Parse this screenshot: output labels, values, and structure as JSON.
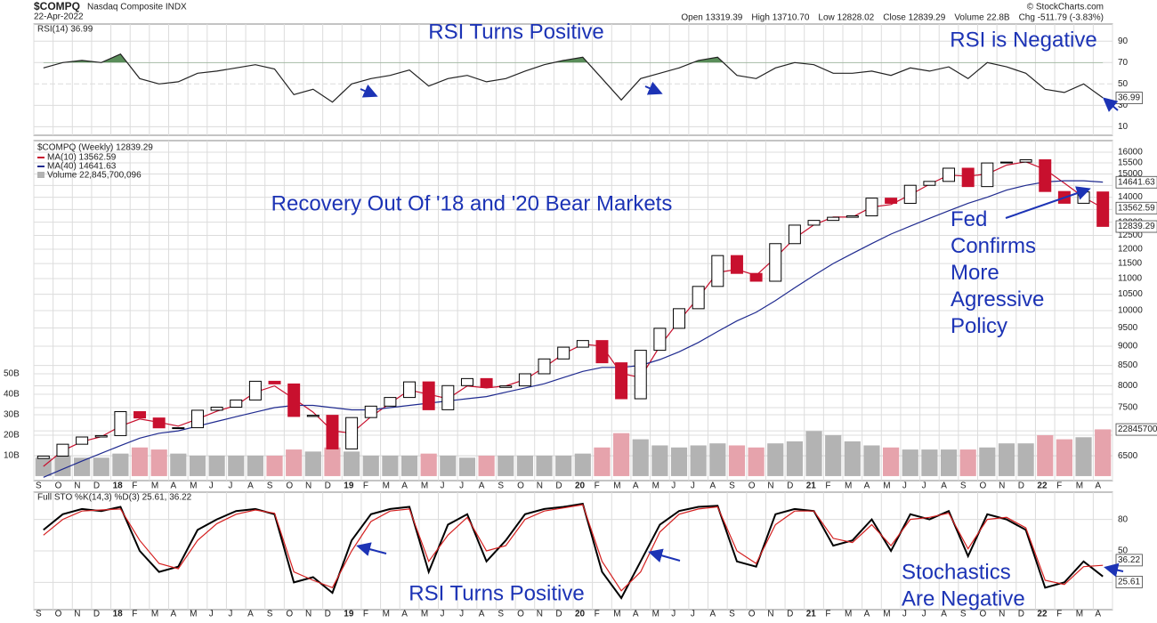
{
  "header": {
    "symbol": "$COMPQ",
    "name": "Nasdaq Composite INDX",
    "date": "22-Apr-2022",
    "quote": [
      "Open 13319.39",
      "High 13710.70",
      "Low 12828.02",
      "Close 12839.29",
      "Volume 22.8B",
      "Chg -511.79 (-3.83%)"
    ],
    "source": "© StockCharts.com"
  },
  "chart_data": [
    {
      "type": "line",
      "label": "RSI(14) 36.99",
      "annotations": [
        "RSI Turns Positive",
        "RSI is Negative"
      ],
      "ylim": [
        2,
        106
      ],
      "yticks": [
        10,
        30,
        50,
        70,
        90
      ],
      "series": [
        {
          "color": "#222222",
          "values": [
            65,
            70,
            72,
            70,
            78,
            55,
            50,
            52,
            60,
            62,
            65,
            68,
            64,
            40,
            45,
            33,
            50,
            55,
            58,
            63,
            48,
            55,
            58,
            52,
            55,
            62,
            68,
            72,
            75,
            55,
            35,
            55,
            60,
            65,
            72,
            75,
            58,
            55,
            65,
            70,
            68,
            60,
            60,
            62,
            58,
            65,
            62,
            66,
            55,
            70,
            66,
            60,
            45,
            42,
            50,
            36.99
          ]
        }
      ]
    },
    {
      "type": "candlestick",
      "title": "$COMPQ (Weekly) 12839.29",
      "annotations": [
        "Recovery Out Of '18 and '20 Bear Markets",
        "Fed Confirms More Agressive Policy"
      ],
      "categories": [
        "S",
        "O",
        "N",
        "D",
        "18",
        "F",
        "M",
        "A",
        "M",
        "J",
        "J",
        "A",
        "S",
        "O",
        "N",
        "D",
        "19",
        "F",
        "M",
        "A",
        "M",
        "J",
        "J",
        "A",
        "S",
        "O",
        "N",
        "D",
        "20",
        "F",
        "M",
        "A",
        "M",
        "J",
        "J",
        "A",
        "S",
        "O",
        "N",
        "D",
        "21",
        "F",
        "M",
        "A",
        "M",
        "J",
        "J",
        "A",
        "S",
        "O",
        "N",
        "D",
        "22",
        "F",
        "M",
        "A"
      ],
      "open": [
        6450,
        6496,
        6728,
        6874,
        6903,
        7411,
        7273,
        7063,
        7066,
        7442,
        7510,
        7672,
        8110,
        8046,
        7306,
        7331,
        6635,
        7282,
        7533,
        7729,
        8095,
        7453,
        8006,
        8175,
        7963,
        7999,
        8292,
        8665,
        8973,
        9151,
        8567,
        7700,
        8890,
        9490,
        10058,
        10745,
        11775,
        11168,
        10912,
        12199,
        12888,
        13070,
        13192,
        13247,
        13962,
        13749,
        14504,
        14673,
        15259,
        14449,
        15498,
        15538,
        15645,
        14240,
        13751,
        14221
      ],
      "close": [
        6496,
        6728,
        6874,
        6903,
        7411,
        7273,
        7063,
        7066,
        7442,
        7510,
        7672,
        8110,
        8046,
        7306,
        7331,
        6635,
        7282,
        7533,
        7729,
        8095,
        7453,
        8006,
        8175,
        7963,
        7999,
        8292,
        8665,
        8973,
        9151,
        8567,
        7700,
        8890,
        9490,
        10058,
        10745,
        11775,
        11168,
        10912,
        12199,
        12888,
        13070,
        13192,
        13247,
        13962,
        13749,
        14504,
        14673,
        15259,
        14449,
        15498,
        15538,
        15645,
        14240,
        13751,
        14221,
        12839.29
      ],
      "up_color": "#000000",
      "down_color": "#c8102e",
      "log": true,
      "ylim": [
        6040,
        16560
      ],
      "yticks": [
        6500,
        7000,
        7500,
        8000,
        8500,
        9000,
        9500,
        10000,
        10500,
        11000,
        11500,
        12000,
        12500,
        13000,
        13500,
        14000,
        14500,
        15000,
        15500,
        16000
      ],
      "series": [
        {
          "name": "MA(10) 13562.59",
          "color": "#c8102e",
          "values": [
            6300,
            6600,
            6780,
            6880,
            7100,
            7250,
            7180,
            7100,
            7250,
            7420,
            7550,
            7850,
            8000,
            7700,
            7400,
            7000,
            6950,
            7300,
            7600,
            7900,
            7800,
            7700,
            8000,
            7950,
            8000,
            8150,
            8450,
            8800,
            9050,
            9000,
            8300,
            8200,
            9000,
            9700,
            10400,
            11200,
            11300,
            11100,
            11700,
            12400,
            12900,
            13200,
            13200,
            13600,
            13700,
            14100,
            14550,
            14950,
            14900,
            15000,
            15400,
            15550,
            15200,
            14600,
            14000,
            13562.59
          ]
        },
        {
          "name": "MA(40) 14641.63",
          "color": "#1f2a8f",
          "values": [
            6100,
            6250,
            6400,
            6550,
            6700,
            6850,
            6950,
            7000,
            7100,
            7200,
            7300,
            7400,
            7500,
            7550,
            7550,
            7500,
            7450,
            7450,
            7500,
            7550,
            7600,
            7650,
            7700,
            7750,
            7850,
            7950,
            8050,
            8200,
            8350,
            8450,
            8450,
            8500,
            8650,
            8850,
            9100,
            9400,
            9700,
            9950,
            10300,
            10700,
            11100,
            11500,
            11850,
            12200,
            12550,
            12850,
            13150,
            13450,
            13750,
            14000,
            14300,
            14500,
            14650,
            14700,
            14700,
            14641.63
          ]
        }
      ],
      "volume": {
        "name": "Volume 22,845,700,096",
        "label": "22845700",
        "up_color": "#b3b3b3",
        "down_color": "#e6a3ac",
        "ylim": [
          -2.2,
          164
        ],
        "yticks": [
          {
            "value": 10,
            "label": "10B"
          },
          {
            "value": 20,
            "label": "20B"
          },
          {
            "value": 30,
            "label": "30B"
          },
          {
            "value": 40,
            "label": "40B"
          },
          {
            "value": 50,
            "label": "50B"
          }
        ],
        "values": [
          9,
          10,
          9,
          9,
          11,
          14,
          13,
          11,
          10,
          10,
          10,
          10,
          10,
          13,
          12,
          14,
          12,
          10,
          10,
          10,
          11,
          10,
          9,
          10,
          10,
          10,
          10,
          10,
          11,
          14,
          21,
          18,
          15,
          14,
          15,
          16,
          15,
          14,
          16,
          17,
          22,
          20,
          17,
          15,
          14,
          13,
          13,
          13,
          13,
          14,
          16,
          16,
          20,
          18,
          19,
          22.8457
        ]
      }
    },
    {
      "type": "line",
      "label": "Full STO %K(14,3) %D(3) 25.61, 36.22",
      "annotations": [
        "RSI Turns Positive",
        "Stochastics",
        "Are Negative"
      ],
      "categories": [
        "S",
        "O",
        "N",
        "D",
        "18",
        "F",
        "M",
        "A",
        "M",
        "J",
        "J",
        "A",
        "S",
        "O",
        "N",
        "D",
        "19",
        "F",
        "M",
        "A",
        "M",
        "J",
        "J",
        "A",
        "S",
        "O",
        "N",
        "D",
        "20",
        "F",
        "M",
        "A",
        "M",
        "J",
        "J",
        "A",
        "S",
        "O",
        "N",
        "D",
        "21",
        "F",
        "M",
        "A",
        "M",
        "J",
        "J",
        "A",
        "S",
        "O",
        "N",
        "D",
        "22",
        "F",
        "M",
        "A"
      ],
      "ylim": [
        -6,
        106
      ],
      "yticks": [
        20,
        50,
        80
      ],
      "series": [
        {
          "color": "#000000",
          "values": [
            70,
            85,
            90,
            88,
            92,
            50,
            30,
            35,
            70,
            80,
            88,
            90,
            85,
            20,
            25,
            10,
            60,
            85,
            90,
            92,
            30,
            75,
            85,
            40,
            60,
            85,
            90,
            92,
            95,
            30,
            5,
            40,
            75,
            88,
            92,
            93,
            40,
            35,
            85,
            90,
            88,
            55,
            60,
            80,
            50,
            85,
            80,
            88,
            45,
            85,
            80,
            70,
            15,
            20,
            40,
            25.61
          ]
        },
        {
          "color": "#d42020",
          "values": [
            65,
            80,
            88,
            89,
            90,
            60,
            38,
            33,
            60,
            76,
            85,
            89,
            86,
            30,
            22,
            15,
            50,
            78,
            88,
            90,
            40,
            65,
            82,
            50,
            55,
            80,
            88,
            91,
            94,
            40,
            12,
            30,
            68,
            85,
            90,
            92,
            50,
            38,
            75,
            88,
            88,
            62,
            58,
            75,
            55,
            80,
            82,
            86,
            52,
            80,
            82,
            72,
            22,
            18,
            35,
            36.22
          ]
        }
      ]
    }
  ]
}
